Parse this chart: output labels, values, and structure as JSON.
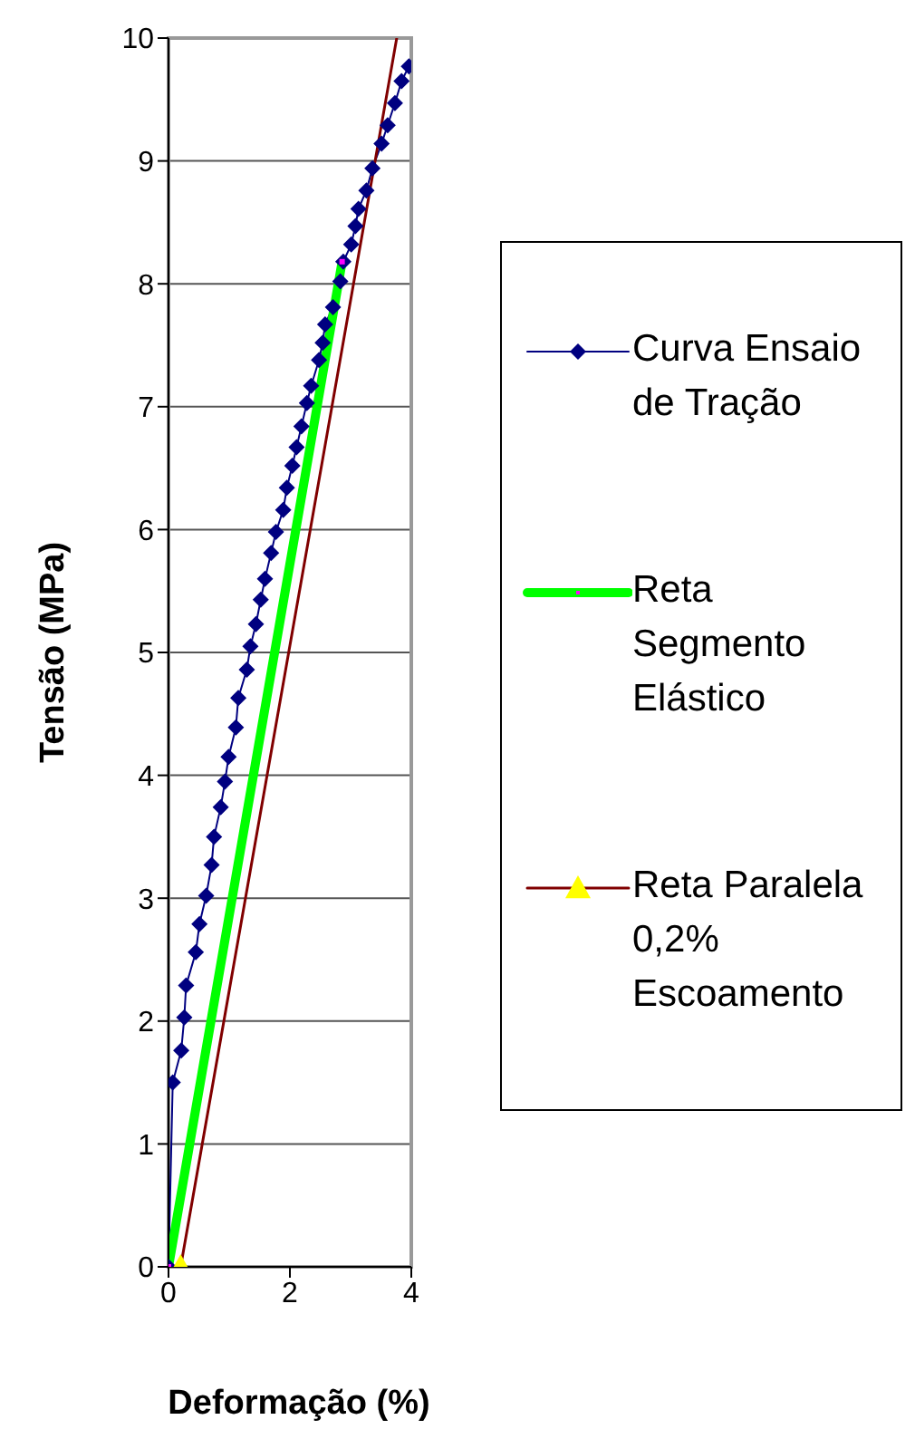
{
  "chart_data": {
    "type": "line",
    "xlabel": "Deformação (%)",
    "ylabel": "Tensão (MPa)",
    "xlim": [
      0,
      4
    ],
    "xticks": [
      0,
      2,
      4
    ],
    "ylim": [
      0,
      10
    ],
    "yticks": [
      0,
      1,
      2,
      3,
      4,
      5,
      6,
      7,
      8,
      9,
      10
    ],
    "grid": "y",
    "legend": "right",
    "series": [
      {
        "name": "Curva Ensaio de Tração",
        "color": "#000080",
        "marker": "diamond",
        "x": [
          0,
          0.07,
          0.21,
          0.26,
          0.29,
          0.45,
          0.51,
          0.62,
          0.71,
          0.75,
          0.86,
          0.93,
          0.99,
          1.11,
          1.15,
          1.29,
          1.35,
          1.44,
          1.52,
          1.59,
          1.69,
          1.77,
          1.89,
          1.95,
          2.04,
          2.11,
          2.19,
          2.28,
          2.35,
          2.48,
          2.54,
          2.58,
          2.71,
          2.83,
          2.88,
          3.01,
          3.08,
          3.13,
          3.26,
          3.36,
          3.51,
          3.61,
          3.73,
          3.84,
          3.96
        ],
        "values": [
          0,
          1.5,
          1.76,
          2.03,
          2.29,
          2.56,
          2.79,
          3.02,
          3.27,
          3.5,
          3.74,
          3.95,
          4.15,
          4.39,
          4.63,
          4.86,
          5.05,
          5.23,
          5.43,
          5.6,
          5.81,
          5.98,
          6.16,
          6.34,
          6.52,
          6.67,
          6.84,
          7.03,
          7.17,
          7.38,
          7.52,
          7.67,
          7.81,
          8.02,
          8.18,
          8.32,
          8.47,
          8.61,
          8.76,
          8.94,
          9.14,
          9.29,
          9.47,
          9.65,
          9.77
        ]
      },
      {
        "name": "Reta Segmento Elástico",
        "color": "#00ff00",
        "marker": "square",
        "colors": [
          "#ff00ff",
          "#ff00ff"
        ],
        "x": [
          0,
          2.86
        ],
        "values": [
          0,
          8.18
        ]
      },
      {
        "name": "Reta Paralela 0,2% Escoamento",
        "color": "#800000",
        "marker": "triangle",
        "colors": [
          "#ffff00",
          null
        ],
        "x": [
          0.2,
          3.76
        ],
        "values": [
          0,
          10
        ]
      }
    ]
  }
}
